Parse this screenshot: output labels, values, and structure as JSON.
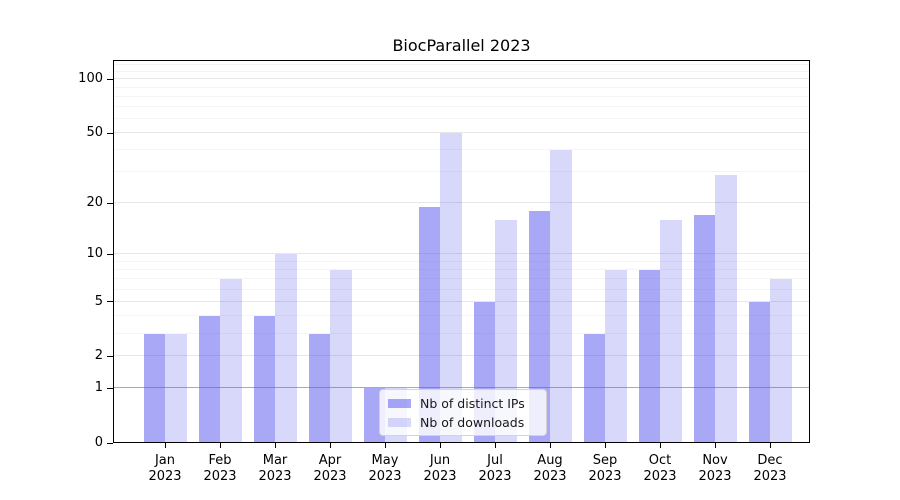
{
  "title": "BiocParallel 2023",
  "chart_data": {
    "type": "bar",
    "title": "BiocParallel 2023",
    "categories": [
      "Jan",
      "Feb",
      "Mar",
      "Apr",
      "May",
      "Jun",
      "Jul",
      "Aug",
      "Sep",
      "Oct",
      "Nov",
      "Dec"
    ],
    "year": "2023",
    "series": [
      {
        "name": "Nb of distinct IPs",
        "color": "#5555ee82",
        "values": [
          3,
          4,
          4,
          3,
          1,
          19,
          5,
          18,
          3,
          8,
          17,
          5
        ]
      },
      {
        "name": "Nb of downloads",
        "color": "#5555ee3b",
        "values": [
          3,
          7,
          10,
          8,
          1,
          50,
          16,
          40,
          8,
          16,
          29,
          7
        ]
      }
    ],
    "y_axis": {
      "scale": "log10(1+x)",
      "ticks": [
        0,
        1,
        2,
        5,
        10,
        20,
        50,
        100
      ],
      "minor_ticks": [
        3,
        4,
        6,
        7,
        8,
        9,
        30,
        40,
        60,
        70,
        80,
        90,
        110,
        120
      ],
      "max_value": 128,
      "unit_line": 1
    },
    "x_axis": {
      "label_lines": 2
    },
    "grid": true,
    "legend_position": "lower center"
  }
}
